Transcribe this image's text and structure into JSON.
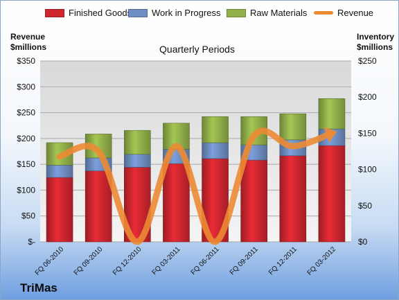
{
  "brand": "TriMas",
  "colors": {
    "finished_goods": "#d0262f",
    "work_in_progress": "#6f8fc4",
    "raw_materials": "#93b14a",
    "revenue": "#ec8a34"
  },
  "chart_data": {
    "type": "bar",
    "stacked": true,
    "title": "Quarterly Periods",
    "left_axis_title": [
      "Revenue",
      "$millions"
    ],
    "right_axis_title": [
      "Inventory",
      "$millions"
    ],
    "categories": [
      "FQ 06-2010",
      "FQ 09-2010",
      "FQ 12-2010",
      "FQ 03-2011",
      "FQ 06-2011",
      "FQ 09-2011",
      "FQ 12-2011",
      "FQ 03-2012"
    ],
    "left_ticks": [
      "$-",
      "$50",
      "$100",
      "$150",
      "$200",
      "$250",
      "$300",
      "$350"
    ],
    "right_ticks": [
      "$0",
      "$50",
      "$100",
      "$150",
      "$200",
      "$250"
    ],
    "left_ylim": [
      0,
      350
    ],
    "right_ylim": [
      0,
      250
    ],
    "grid": true,
    "legend_position": "top",
    "series": [
      {
        "name": "Finished Goods",
        "axis": "right",
        "values": [
          89,
          98,
          103,
          108,
          115,
          113,
          119,
          133
        ]
      },
      {
        "name": "Work in Progress",
        "axis": "right",
        "values": [
          17,
          18,
          18,
          20,
          22,
          21,
          22,
          23
        ]
      },
      {
        "name": "Raw Materials",
        "axis": "right",
        "values": [
          31,
          33,
          33,
          36,
          36,
          39,
          36,
          42
        ]
      },
      {
        "name": "Revenue",
        "type": "line",
        "axis": "left",
        "values": [
          165,
          175,
          0,
          185,
          0,
          205,
          185,
          210
        ]
      }
    ]
  }
}
